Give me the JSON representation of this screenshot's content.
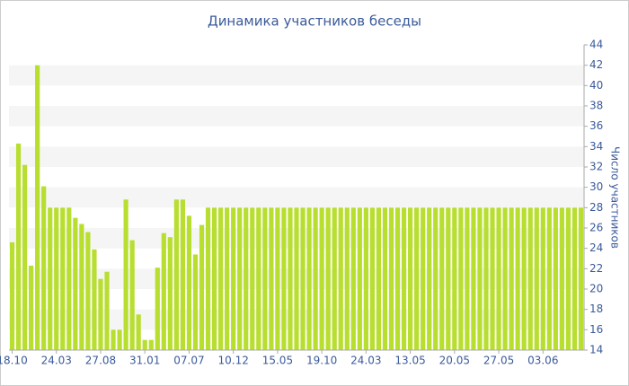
{
  "chart_data": {
    "type": "bar",
    "title": "Динамика участников беседы",
    "y_axis_label": "Число участников",
    "categories": [
      "18.10",
      null,
      null,
      null,
      null,
      null,
      null,
      "24.03",
      null,
      null,
      null,
      null,
      null,
      null,
      "27.08",
      null,
      null,
      null,
      null,
      null,
      null,
      "31.01",
      null,
      null,
      null,
      null,
      null,
      null,
      "07.07",
      null,
      null,
      null,
      null,
      null,
      null,
      "10.12",
      null,
      null,
      null,
      null,
      null,
      null,
      "15.05",
      null,
      null,
      null,
      null,
      null,
      null,
      "19.10",
      null,
      null,
      null,
      null,
      null,
      null,
      "24.03",
      null,
      null,
      null,
      null,
      null,
      null,
      "13.05",
      null,
      null,
      null,
      null,
      null,
      null,
      "20.05",
      null,
      null,
      null,
      null,
      null,
      null,
      "27.05",
      null,
      null,
      null,
      null,
      null,
      null,
      "03.06",
      null,
      null,
      null,
      null,
      null,
      null
    ],
    "values": [
      24.6,
      34.3,
      32.2,
      22.3,
      42,
      30.1,
      28,
      28,
      28,
      28,
      27,
      26.4,
      25.6,
      23.9,
      21,
      21.7,
      16,
      16,
      28.8,
      24.8,
      17.5,
      15,
      15,
      22.1,
      25.5,
      25.1,
      28.8,
      28.8,
      27.2,
      23.4,
      26.3,
      28,
      28,
      28,
      28,
      28,
      28,
      28,
      28,
      28,
      28,
      28,
      28,
      28,
      28,
      28,
      28,
      28,
      28,
      28,
      28,
      28,
      28,
      28,
      28,
      28,
      28,
      28,
      28,
      28,
      28,
      28,
      28,
      28,
      28,
      28,
      28,
      28,
      28,
      28,
      28,
      28,
      28,
      28,
      28,
      28,
      28,
      28,
      28,
      28,
      28,
      28,
      28,
      28,
      28,
      28,
      28,
      28,
      28,
      28,
      28
    ],
    "color": "#b8de30",
    "ylim": [
      14,
      44
    ],
    "yticks": [
      14,
      16,
      18,
      20,
      22,
      24,
      26,
      28,
      30,
      32,
      34,
      36,
      38,
      40,
      42,
      44
    ],
    "alternate_bands": true
  }
}
